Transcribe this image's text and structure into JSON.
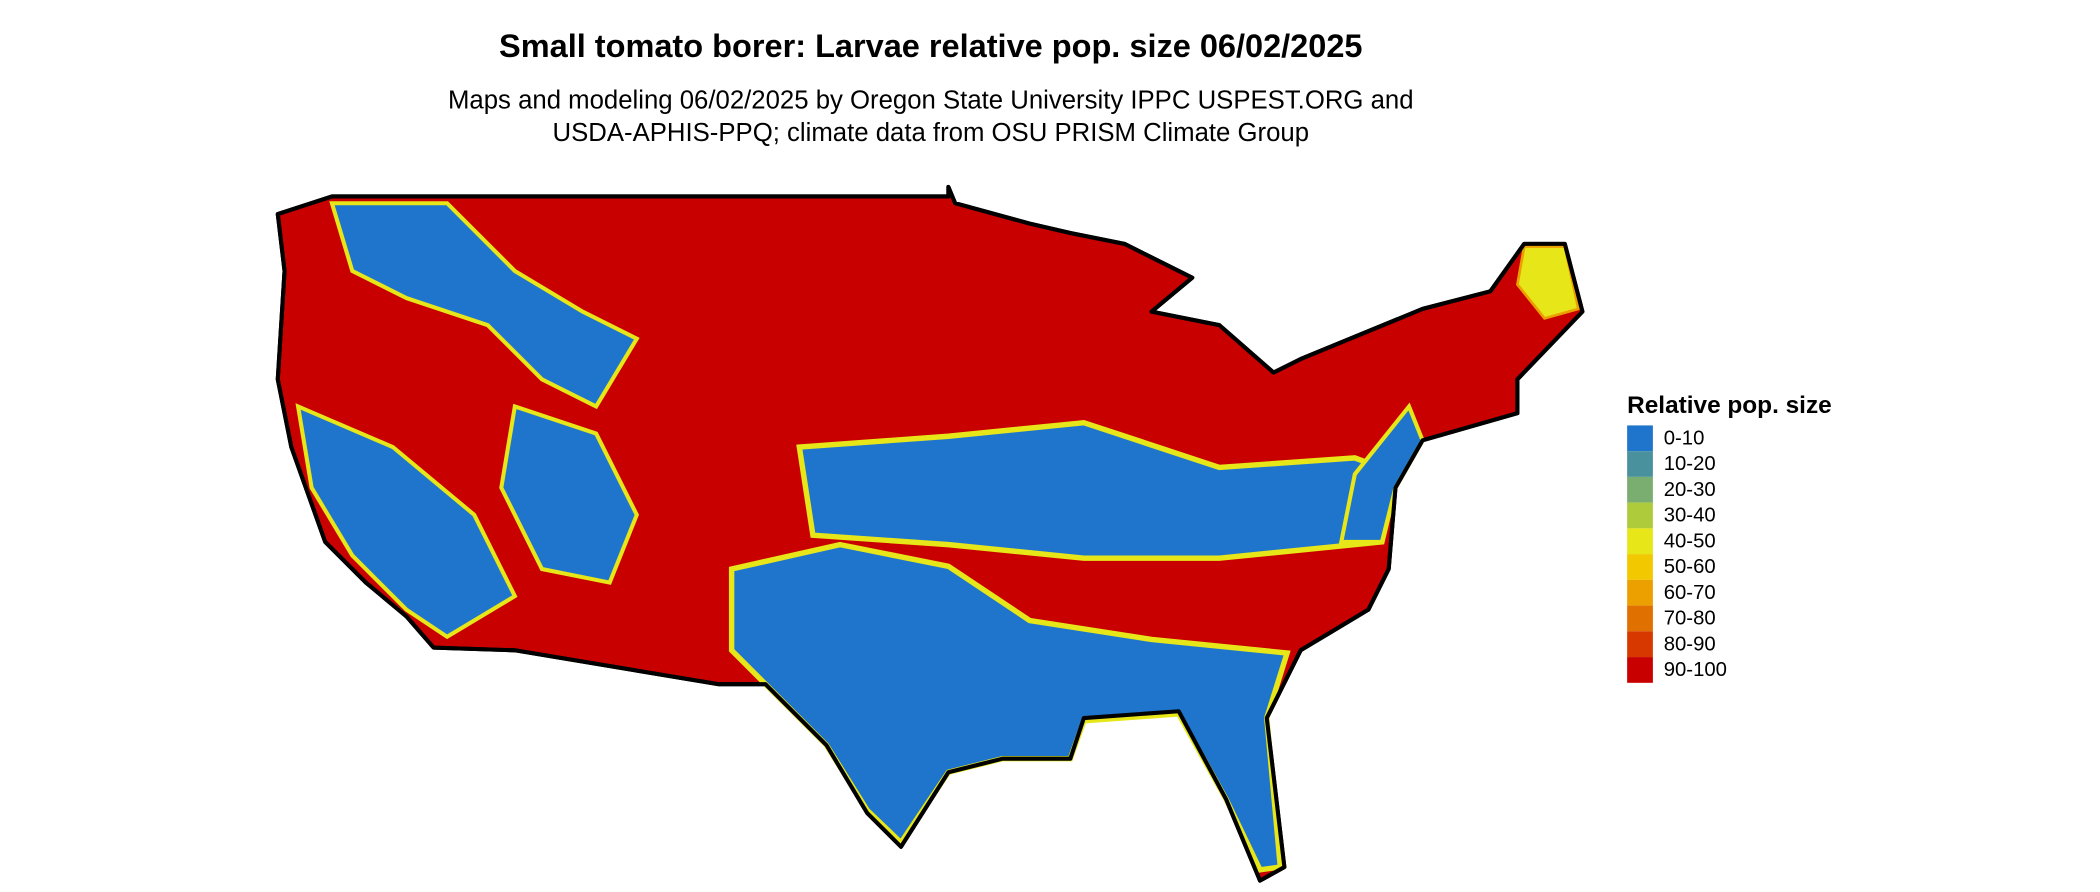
{
  "map": {
    "title": "Small tomato borer: Larvae relative pop. size 06/02/2025",
    "subtitle": [
      "Maps and modeling 06/02/2025 by Oregon State University IPPC USPEST.ORG and",
      "USDA-APHIS-PPQ; climate data from OSU PRISM Climate Group"
    ],
    "legend": {
      "title": "Relative pop. size",
      "items": [
        {
          "label": "0-10",
          "color": "#1f75cc"
        },
        {
          "label": "10-20",
          "color": "#4a919e"
        },
        {
          "label": "20-30",
          "color": "#7aad70"
        },
        {
          "label": "30-40",
          "color": "#aecb3c"
        },
        {
          "label": "40-50",
          "color": "#e6e619"
        },
        {
          "label": "50-60",
          "color": "#f2c800"
        },
        {
          "label": "60-70",
          "color": "#eca000"
        },
        {
          "label": "70-80",
          "color": "#e07000"
        },
        {
          "label": "80-90",
          "color": "#d63800"
        },
        {
          "label": "90-100",
          "color": "#c80000"
        }
      ]
    }
  }
}
